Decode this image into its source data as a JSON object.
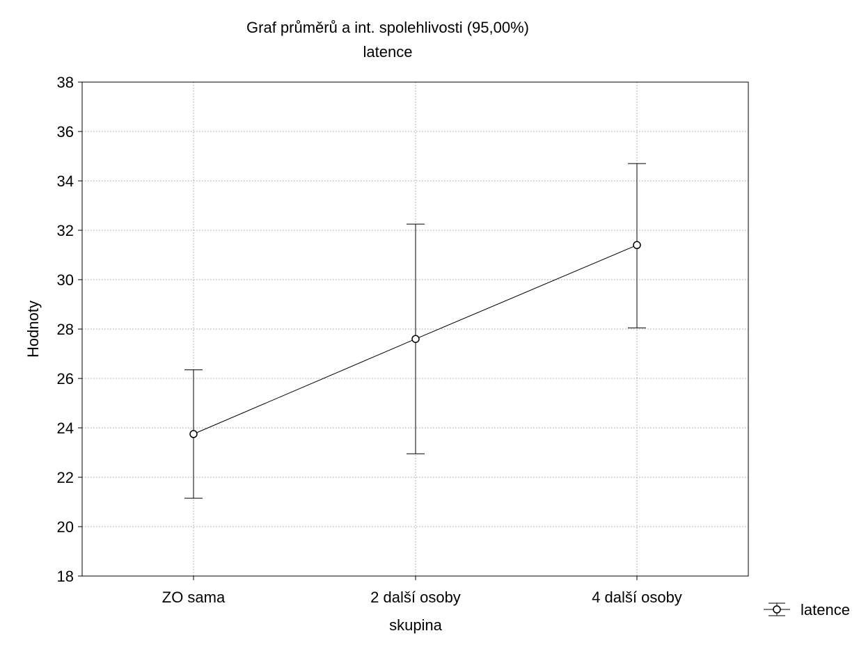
{
  "chart_data": {
    "type": "line",
    "title": "Graf průměrů a int. spolehlivosti (95,00%)",
    "subtitle": "latence",
    "xlabel": "skupina",
    "ylabel": "Hodnoty",
    "categories": [
      "ZO sama",
      "2 další osoby",
      "4 další osoby"
    ],
    "series": [
      {
        "name": "latence",
        "values": [
          23.75,
          27.6,
          31.4
        ],
        "ci_lower": [
          21.15,
          22.95,
          28.05
        ],
        "ci_upper": [
          26.35,
          32.25,
          34.7
        ]
      }
    ],
    "ylim": [
      18,
      38
    ],
    "yticks": [
      18,
      20,
      22,
      24,
      26,
      28,
      30,
      32,
      34,
      36,
      38
    ],
    "grid": true,
    "legend_position": "bottom-right",
    "colors": {
      "line": "#000000",
      "grid": "#a0a0a0",
      "background": "#ffffff"
    }
  }
}
